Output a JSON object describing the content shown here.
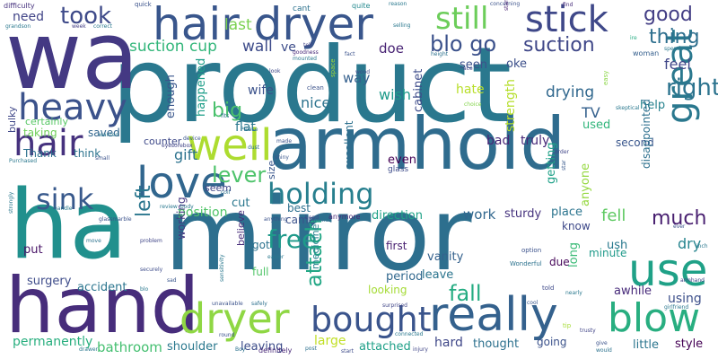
{
  "cloud": {
    "words": [
      {
        "text": "product",
        "color": "#2a788e"
      },
      {
        "text": "mirror",
        "color": "#2d6f8e"
      },
      {
        "text": "wa",
        "color": "#443983"
      },
      {
        "text": "ha",
        "color": "#21908d"
      },
      {
        "text": "hand",
        "color": "#472d7b"
      },
      {
        "text": "armhold",
        "color": "#2f6c8e"
      },
      {
        "text": "hair dryer",
        "color": "#39568c"
      },
      {
        "text": "stick",
        "color": "#3f4889"
      },
      {
        "text": "still",
        "color": "#6ccd5a"
      },
      {
        "text": "really",
        "color": "#34618d"
      },
      {
        "text": "bought",
        "color": "#3a548c"
      },
      {
        "text": "dryer",
        "color": "#8fd744"
      },
      {
        "text": "use",
        "color": "#1fa187"
      },
      {
        "text": "blow",
        "color": "#28ae80"
      },
      {
        "text": "love",
        "color": "#31668e"
      },
      {
        "text": "well",
        "color": "#addc30"
      },
      {
        "text": "heavy",
        "color": "#3b528b"
      },
      {
        "text": "hair",
        "color": "#46327e"
      },
      {
        "text": "holding",
        "color": "#277f8e"
      },
      {
        "text": "great",
        "color": "#2a788e"
      },
      {
        "text": "took",
        "color": "#3e4a89"
      },
      {
        "text": "blo go",
        "color": "#3b518b"
      },
      {
        "text": "good",
        "color": "#433e85"
      },
      {
        "text": "suction",
        "color": "#3f4788"
      },
      {
        "text": "thing",
        "color": "#2e6f8e"
      },
      {
        "text": "suction cup",
        "color": "#32b67a"
      },
      {
        "text": "wall",
        "color": "#3e4c8a"
      },
      {
        "text": "big",
        "color": "#4ac16d"
      },
      {
        "text": "right",
        "color": "#2c738e"
      },
      {
        "text": "sink",
        "color": "#38598c"
      },
      {
        "text": "lever",
        "color": "#4ec36b"
      },
      {
        "text": "much",
        "color": "#481f70"
      },
      {
        "text": "left",
        "color": "#2a768e"
      },
      {
        "text": "free",
        "color": "#1f9a8a"
      },
      {
        "text": "attach",
        "color": "#22a785"
      },
      {
        "text": "fall",
        "color": "#25ac82"
      },
      {
        "text": "feel",
        "color": "#404688"
      },
      {
        "text": "drying",
        "color": "#31688e"
      },
      {
        "text": "TV",
        "color": "#34608d"
      },
      {
        "text": "gift",
        "color": "#2c728e"
      },
      {
        "text": "position",
        "color": "#52c569"
      },
      {
        "text": "fell",
        "color": "#5ec962"
      },
      {
        "text": "dry",
        "color": "#25848e"
      },
      {
        "text": "need",
        "color": "#414487"
      },
      {
        "text": "last",
        "color": "#7ad151"
      },
      {
        "text": "ve",
        "color": "#3d4d8a"
      },
      {
        "text": "doe",
        "color": "#482374"
      },
      {
        "text": "way",
        "color": "#35608d"
      },
      {
        "text": "oke",
        "color": "#3c4f8a"
      },
      {
        "text": "seen",
        "color": "#3c508b"
      },
      {
        "text": "hate",
        "color": "#b8de29"
      },
      {
        "text": "wish",
        "color": "#1e9b8a"
      },
      {
        "text": "cabinet",
        "color": "#3e4c8a"
      },
      {
        "text": "strength",
        "color": "#b5de2b"
      },
      {
        "text": "nice",
        "color": "#2c738e"
      },
      {
        "text": "wife",
        "color": "#3b528b"
      },
      {
        "text": "happened",
        "color": "#1f9e89"
      },
      {
        "text": "enough",
        "color": "#39568c"
      },
      {
        "text": "flat",
        "color": "#2a778e"
      },
      {
        "text": "bad",
        "color": "#482677"
      },
      {
        "text": "truly",
        "color": "#482979"
      },
      {
        "text": "even",
        "color": "#440154"
      },
      {
        "text": "excellent",
        "color": "#2d708e"
      },
      {
        "text": "getting",
        "color": "#1fa188"
      },
      {
        "text": "anyone",
        "color": "#95d840"
      },
      {
        "text": "second",
        "color": "#39568c"
      },
      {
        "text": "help",
        "color": "#26828e"
      },
      {
        "text": "used",
        "color": "#31b57b"
      },
      {
        "text": "disappointed",
        "color": "#2d708e"
      },
      {
        "text": "saved",
        "color": "#31668e"
      },
      {
        "text": "taking",
        "color": "#6ece58"
      },
      {
        "text": "certainly",
        "color": "#58c765"
      },
      {
        "text": "bulky",
        "color": "#3f4788"
      },
      {
        "text": "Thank",
        "color": "#2d708e"
      },
      {
        "text": "think",
        "color": "#2c738e"
      },
      {
        "text": "counter",
        "color": "#3e4989"
      },
      {
        "text": "size",
        "color": "#39568c"
      },
      {
        "text": "cut",
        "color": "#2a778e"
      },
      {
        "text": "seem",
        "color": "#404688"
      },
      {
        "text": "best",
        "color": "#2d708e"
      },
      {
        "text": "came",
        "color": "#3b528b"
      },
      {
        "text": "direction",
        "color": "#1fa287"
      },
      {
        "text": "work",
        "color": "#31678e"
      },
      {
        "text": "sturdy",
        "color": "#46337e"
      },
      {
        "text": "place",
        "color": "#2b748e"
      },
      {
        "text": "know",
        "color": "#3e4989"
      },
      {
        "text": "got",
        "color": "#2c728e"
      },
      {
        "text": "put",
        "color": "#481467"
      },
      {
        "text": "surgery",
        "color": "#3e4c8a"
      },
      {
        "text": "accident",
        "color": "#2b758e"
      },
      {
        "text": "working",
        "color": "#453882"
      },
      {
        "text": "full",
        "color": "#52c569"
      },
      {
        "text": "believe",
        "color": "#472c7a"
      },
      {
        "text": "period",
        "color": "#31688e"
      },
      {
        "text": "leave",
        "color": "#2b758e"
      },
      {
        "text": "looking",
        "color": "#a5db36"
      },
      {
        "text": "medicine",
        "color": "#26828e"
      },
      {
        "text": "attach",
        "color": "#26ad81"
      },
      {
        "text": "vanity",
        "color": "#34618d"
      },
      {
        "text": "due",
        "color": "#450559"
      },
      {
        "text": "first",
        "color": "#482071"
      },
      {
        "text": "long",
        "color": "#3aba76"
      },
      {
        "text": "ush",
        "color": "#29798e"
      },
      {
        "text": "minute",
        "color": "#1f9a8a"
      },
      {
        "text": "awhile",
        "color": "#472a7a"
      },
      {
        "text": "using",
        "color": "#3c4f8a"
      },
      {
        "text": "permanently",
        "color": "#29af7f"
      },
      {
        "text": "bathroom",
        "color": "#44bf70"
      },
      {
        "text": "shoulder",
        "color": "#2a788e"
      },
      {
        "text": "leaving",
        "color": "#3d4d8a"
      },
      {
        "text": "large",
        "color": "#c0df25"
      },
      {
        "text": "attached",
        "color": "#1fa088"
      },
      {
        "text": "hard",
        "color": "#3f4788"
      },
      {
        "text": "thought",
        "color": "#2d718e"
      },
      {
        "text": "going",
        "color": "#3b528b"
      },
      {
        "text": "little",
        "color": "#2b758e"
      },
      {
        "text": "style",
        "color": "#440154"
      },
      {
        "text": "definitely",
        "color": "#482878"
      },
      {
        "text": "difficulty",
        "color": "#46327e"
      },
      {
        "text": "grandson",
        "color": "#2a788e"
      },
      {
        "text": "week",
        "color": "#433e85"
      },
      {
        "text": "correct",
        "color": "#2a788e"
      },
      {
        "text": "quick",
        "color": "#3b528b"
      },
      {
        "text": "cant",
        "color": "#2c728e"
      },
      {
        "text": "quite",
        "color": "#23898e"
      },
      {
        "text": "reason",
        "color": "#2a788e"
      },
      {
        "text": "concerning",
        "color": "#3b528b"
      },
      {
        "text": "find",
        "color": "#472d7b"
      },
      {
        "text": "stand",
        "color": "#482071"
      },
      {
        "text": "goodness",
        "color": "#482878"
      },
      {
        "text": "mounted",
        "color": "#2a788e"
      },
      {
        "text": "tell",
        "color": "#414487"
      },
      {
        "text": "selling",
        "color": "#2a788e"
      },
      {
        "text": "fact",
        "color": "#3b528b"
      },
      {
        "text": "height",
        "color": "#2c728e"
      },
      {
        "text": "ace",
        "color": "#404688"
      },
      {
        "text": "woman",
        "color": "#355f8d"
      },
      {
        "text": "spends",
        "color": "#2a788e"
      },
      {
        "text": "ire",
        "color": "#25ab82"
      },
      {
        "text": "look",
        "color": "#3e4989"
      },
      {
        "text": "space",
        "color": "#a2da37"
      },
      {
        "text": "clean",
        "color": "#3b528b"
      },
      {
        "text": "wood",
        "color": "#3e4a89"
      },
      {
        "text": "choice",
        "color": "#84d44b"
      },
      {
        "text": "easy",
        "color": "#8bd646"
      },
      {
        "text": "skeptical",
        "color": "#2a788e"
      },
      {
        "text": "fits",
        "color": "#2d708e"
      },
      {
        "text": "device",
        "color": "#39568c"
      },
      {
        "text": "Please",
        "color": "#2c728e"
      },
      {
        "text": "made",
        "color": "#3b528b"
      },
      {
        "text": "dust",
        "color": "#2d708e"
      },
      {
        "text": "glass",
        "color": "#3e4c8a"
      },
      {
        "text": "order",
        "color": "#404688"
      },
      {
        "text": "star",
        "color": "#38598c"
      },
      {
        "text": "wanted",
        "color": "#2a788e"
      },
      {
        "text": "small",
        "color": "#3b528b"
      },
      {
        "text": "Purchased",
        "color": "#2a788e"
      },
      {
        "text": "eyesorebox",
        "color": "#414487"
      },
      {
        "text": "shiny",
        "color": "#39568c"
      },
      {
        "text": "coif",
        "color": "#2c728e"
      },
      {
        "text": "review_body",
        "color": "#2a788e"
      },
      {
        "text": "anything",
        "color": "#3b528b"
      },
      {
        "text": "worked",
        "color": "#2d708e"
      },
      {
        "text": "anymore",
        "color": "#482878"
      },
      {
        "text": "bend",
        "color": "#3e4989"
      },
      {
        "text": "easier",
        "color": "#2a788e"
      },
      {
        "text": "glassmarble",
        "color": "#3b528b"
      },
      {
        "text": "strongly",
        "color": "#2a788e"
      },
      {
        "text": "move",
        "color": "#2c728e"
      },
      {
        "text": "problem",
        "color": "#404688"
      },
      {
        "text": "securely",
        "color": "#3e4c8a"
      },
      {
        "text": "sad",
        "color": "#39568c"
      },
      {
        "text": "blo",
        "color": "#2a788e"
      },
      {
        "text": "unavailable",
        "color": "#3b528b"
      },
      {
        "text": "safely",
        "color": "#2d708e"
      },
      {
        "text": "surprised",
        "color": "#404688"
      },
      {
        "text": "sensitivity",
        "color": "#2a788e"
      },
      {
        "text": "option",
        "color": "#3b528b"
      },
      {
        "text": "Wonderful",
        "color": "#2c728e"
      },
      {
        "text": "told",
        "color": "#3e4989"
      },
      {
        "text": "nearly",
        "color": "#2a788e"
      },
      {
        "text": "armhand",
        "color": "#414487"
      },
      {
        "text": "girlfriend",
        "color": "#2a788e"
      },
      {
        "text": "cool",
        "color": "#39568c"
      },
      {
        "text": "tip",
        "color": "#a5db36"
      },
      {
        "text": "inch",
        "color": "#2a788e"
      },
      {
        "text": "round",
        "color": "#3b528b"
      },
      {
        "text": "Boy",
        "color": "#2c728e"
      },
      {
        "text": "post",
        "color": "#2d708e"
      },
      {
        "text": "injury",
        "color": "#404688"
      },
      {
        "text": "start",
        "color": "#3e4c8a"
      },
      {
        "text": "connected",
        "color": "#2a788e"
      },
      {
        "text": "give",
        "color": "#3b528b"
      },
      {
        "text": "would",
        "color": "#2c728e"
      },
      {
        "text": "drawer",
        "color": "#2a788e"
      },
      {
        "text": "trusty",
        "color": "#414487"
      },
      {
        "text": "handle",
        "color": "#2a788e"
      },
      {
        "text": "ever",
        "color": "#3b528b"
      }
    ]
  }
}
